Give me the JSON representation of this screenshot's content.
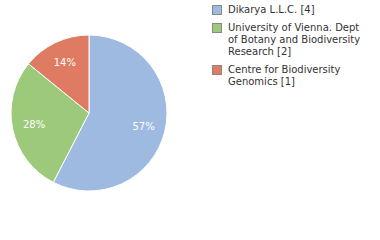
{
  "chart_data": {
    "type": "pie",
    "categories": [
      "Dikarya L.L.C. [4]",
      "University of Vienna. Dept of Botany and Biodiversity Research [2]",
      "Centre for Biodiversity Genomics [1]"
    ],
    "values": [
      57,
      28,
      14
    ],
    "value_labels": [
      "57%",
      "28%",
      "14%"
    ],
    "colors": [
      "#9ebae0",
      "#9dc97b",
      "#df7b63"
    ],
    "data_labels": true,
    "legend": "right"
  }
}
